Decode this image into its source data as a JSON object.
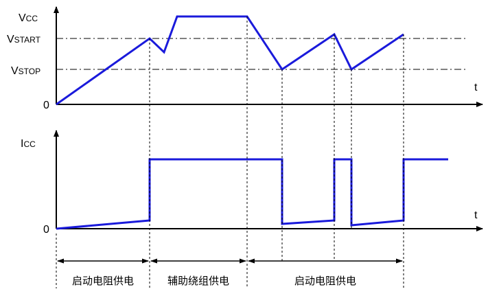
{
  "top_axis": {
    "y_label_main": "V",
    "y_label_sub": "CC",
    "x_label": "t",
    "origin": "0"
  },
  "levels": {
    "start": {
      "main": "V",
      "sub": "START"
    },
    "stop": {
      "main": "V",
      "sub": "STOP"
    }
  },
  "bottom_axis": {
    "y_label_main": "I",
    "y_label_sub": "CC",
    "x_label": "t",
    "origin": "0"
  },
  "phases": [
    {
      "label": "启动电阻供电"
    },
    {
      "label": "辅助绕组供电"
    },
    {
      "label": "启动电阻供电"
    }
  ],
  "colors": {
    "waveform": "#1a1adb",
    "axis": "#000000"
  }
}
